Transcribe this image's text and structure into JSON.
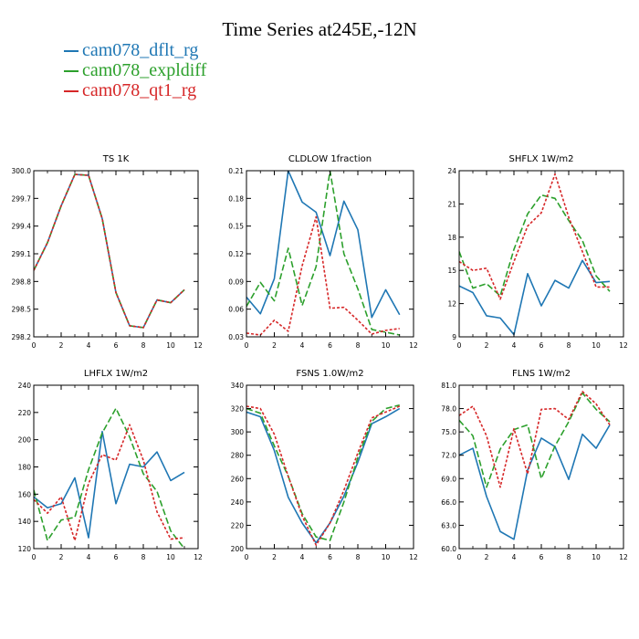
{
  "title": "Time Series at245E,-12N",
  "legend": [
    {
      "label": "cam078_dflt_rg",
      "color": "#1f77b4"
    },
    {
      "label": "cam078_expldiff",
      "color": "#2ca02c"
    },
    {
      "label": "cam078_qt1_rg",
      "color": "#d62728"
    }
  ],
  "chart_data": [
    {
      "type": "line",
      "title": "TS   1K",
      "x": [
        0,
        1,
        2,
        3,
        4,
        5,
        6,
        7,
        8,
        9,
        10,
        11
      ],
      "xlim": [
        0,
        12
      ],
      "xticks": [
        0,
        2,
        4,
        6,
        8,
        10,
        12
      ],
      "ylim": [
        298.2,
        300.0
      ],
      "yticks": [
        "298.2",
        "298.5",
        "298.8",
        "299.1",
        "299.4",
        "299.7",
        "300.0"
      ],
      "series": [
        {
          "name": "cam078_dflt_rg",
          "values": [
            298.92,
            299.22,
            299.62,
            299.96,
            299.95,
            299.48,
            298.68,
            298.32,
            298.3,
            298.6,
            298.57,
            298.71
          ]
        },
        {
          "name": "cam078_expldiff",
          "values": [
            298.92,
            299.22,
            299.62,
            299.96,
            299.95,
            299.48,
            298.68,
            298.32,
            298.3,
            298.6,
            298.57,
            298.71
          ]
        },
        {
          "name": "cam078_qt1_rg",
          "values": [
            298.92,
            299.22,
            299.62,
            299.96,
            299.95,
            299.48,
            298.68,
            298.32,
            298.3,
            298.6,
            298.57,
            298.71
          ]
        }
      ]
    },
    {
      "type": "line",
      "title": "CLDLOW   1fraction",
      "x": [
        0,
        1,
        2,
        3,
        4,
        5,
        6,
        7,
        8,
        9,
        10,
        11
      ],
      "xlim": [
        0,
        12
      ],
      "xticks": [
        0,
        2,
        4,
        6,
        8,
        10,
        12
      ],
      "ylim": [
        0.03,
        0.21
      ],
      "yticks": [
        "0.03",
        "0.06",
        "0.09",
        "0.12",
        "0.15",
        "0.18",
        "0.21"
      ],
      "series": [
        {
          "name": "cam078_dflt_rg",
          "values": [
            0.073,
            0.055,
            0.093,
            0.21,
            0.176,
            0.165,
            0.118,
            0.177,
            0.146,
            0.051,
            0.081,
            0.054
          ]
        },
        {
          "name": "cam078_expldiff",
          "values": [
            0.063,
            0.089,
            0.069,
            0.126,
            0.064,
            0.106,
            0.21,
            0.12,
            0.082,
            0.038,
            0.035,
            0.032
          ]
        },
        {
          "name": "cam078_qt1_rg",
          "values": [
            0.034,
            0.032,
            0.048,
            0.036,
            0.107,
            0.16,
            0.061,
            0.062,
            0.048,
            0.033,
            0.037,
            0.039
          ]
        }
      ]
    },
    {
      "type": "line",
      "title": "SHFLX   1W/m2",
      "x": [
        0,
        1,
        2,
        3,
        4,
        5,
        6,
        7,
        8,
        9,
        10,
        11
      ],
      "xlim": [
        0,
        12
      ],
      "xticks": [
        0,
        2,
        4,
        6,
        8,
        10,
        12
      ],
      "ylim": [
        9,
        24
      ],
      "yticks": [
        "9",
        "12",
        "15",
        "18",
        "21",
        "24"
      ],
      "series": [
        {
          "name": "cam078_dflt_rg",
          "values": [
            13.6,
            13.0,
            10.9,
            10.7,
            9.2,
            14.7,
            11.8,
            14.1,
            13.4,
            15.9,
            13.9,
            14.0
          ]
        },
        {
          "name": "cam078_expldiff",
          "values": [
            16.7,
            13.4,
            13.8,
            12.7,
            16.9,
            20.1,
            21.8,
            21.5,
            19.5,
            17.7,
            14.5,
            13.1
          ]
        },
        {
          "name": "cam078_qt1_rg",
          "values": [
            15.8,
            15.0,
            15.2,
            12.4,
            15.8,
            19.0,
            20.2,
            23.7,
            19.8,
            16.7,
            13.5,
            13.5
          ]
        }
      ]
    },
    {
      "type": "line",
      "title": "LHFLX   1W/m2",
      "x": [
        0,
        1,
        2,
        3,
        4,
        5,
        6,
        7,
        8,
        9,
        10,
        11
      ],
      "xlim": [
        0,
        12
      ],
      "xticks": [
        0,
        2,
        4,
        6,
        8,
        10,
        12
      ],
      "ylim": [
        120,
        240
      ],
      "yticks": [
        "120",
        "140",
        "160",
        "180",
        "200",
        "220",
        "240"
      ],
      "series": [
        {
          "name": "cam078_dflt_rg",
          "values": [
            158,
            150,
            153,
            172,
            128,
            206,
            153,
            182,
            180,
            191,
            170,
            176
          ]
        },
        {
          "name": "cam078_expldiff",
          "values": [
            163,
            126,
            141,
            143,
            178,
            205,
            223,
            202,
            175,
            162,
            133,
            120
          ]
        },
        {
          "name": "cam078_qt1_rg",
          "values": [
            156,
            146,
            158,
            126,
            168,
            189,
            185,
            211,
            185,
            147,
            127,
            128
          ]
        }
      ]
    },
    {
      "type": "line",
      "title": "FSNS   1.0W/m2",
      "x": [
        0,
        1,
        2,
        3,
        4,
        5,
        6,
        7,
        8,
        9,
        10,
        11
      ],
      "xlim": [
        0,
        12
      ],
      "xticks": [
        0,
        2,
        4,
        6,
        8,
        10,
        12
      ],
      "ylim": [
        200,
        340
      ],
      "yticks": [
        "200",
        "220",
        "240",
        "260",
        "280",
        "300",
        "320",
        "340"
      ],
      "series": [
        {
          "name": "cam078_dflt_rg",
          "values": [
            317,
            313,
            284,
            244,
            222,
            205,
            222,
            245,
            274,
            307,
            313,
            320
          ]
        },
        {
          "name": "cam078_expldiff",
          "values": [
            320,
            316,
            288,
            262,
            230,
            210,
            207,
            240,
            278,
            309,
            320,
            323
          ]
        },
        {
          "name": "cam078_qt1_rg",
          "values": [
            322,
            320,
            298,
            262,
            228,
            203,
            222,
            250,
            282,
            312,
            317,
            322
          ]
        }
      ]
    },
    {
      "type": "line",
      "title": "FLNS   1W/m2",
      "x": [
        0,
        1,
        2,
        3,
        4,
        5,
        6,
        7,
        8,
        9,
        10,
        11
      ],
      "xlim": [
        0,
        12
      ],
      "xticks": [
        0,
        2,
        4,
        6,
        8,
        10,
        12
      ],
      "ylim": [
        60,
        81
      ],
      "yticks": [
        "60.0",
        "63.0",
        "66.0",
        "69.0",
        "72.0",
        "75.0",
        "78.0",
        "81.0"
      ],
      "series": [
        {
          "name": "cam078_dflt_rg",
          "values": [
            72.0,
            72.9,
            66.7,
            62.2,
            61.2,
            70.1,
            74.2,
            73.1,
            68.9,
            74.7,
            72.9,
            75.9
          ]
        },
        {
          "name": "cam078_expldiff",
          "values": [
            76.5,
            74.5,
            67.9,
            72.8,
            75.3,
            75.9,
            69.0,
            73.2,
            76.3,
            80.0,
            77.9,
            76.3
          ]
        },
        {
          "name": "cam078_qt1_rg",
          "values": [
            77.1,
            78.3,
            74.5,
            67.9,
            75.4,
            69.6,
            77.9,
            78.0,
            76.6,
            80.2,
            78.6,
            75.9
          ]
        }
      ]
    }
  ]
}
